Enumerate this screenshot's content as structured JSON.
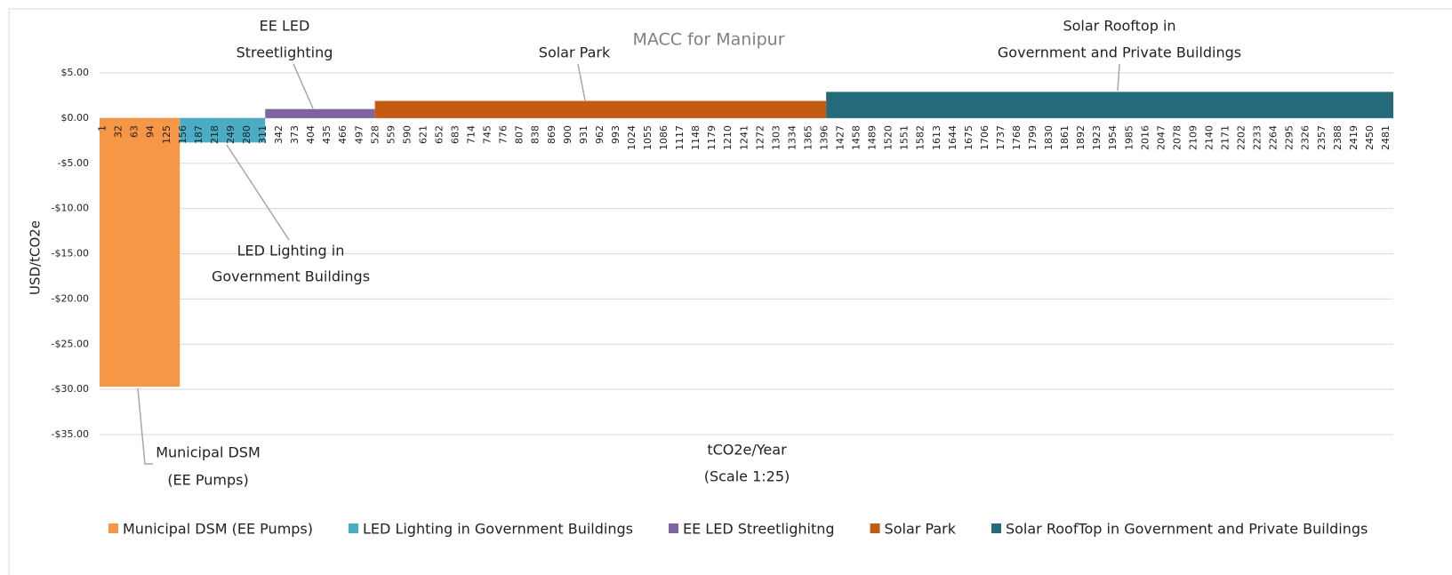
{
  "chart_data": {
    "type": "macc",
    "title": "MACC for Manipur",
    "y_label": "USD/tCO2e",
    "x_label": [
      "tCO2e/Year",
      "(Scale 1:25)"
    ],
    "xlim": [
      0,
      2500
    ],
    "xticks": [
      1,
      32,
      63,
      94,
      125,
      156,
      187,
      218,
      249,
      280,
      311,
      342,
      373,
      404,
      435,
      466,
      497,
      528,
      559,
      590,
      621,
      652,
      683,
      714,
      745,
      776,
      807,
      838,
      869,
      900,
      931,
      962,
      993,
      1024,
      1055,
      1086,
      1117,
      1148,
      1179,
      1210,
      1241,
      1272,
      1303,
      1334,
      1365,
      1396,
      1427,
      1458,
      1489,
      1520,
      1551,
      1582,
      1613,
      1644,
      1675,
      1706,
      1737,
      1768,
      1799,
      1830,
      1861,
      1892,
      1923,
      1954,
      1985,
      2016,
      2047,
      2078,
      2109,
      2140,
      2171,
      2202,
      2233,
      2264,
      2295,
      2326,
      2357,
      2388,
      2419,
      2450,
      2481
    ],
    "ylim": [
      -35,
      10
    ],
    "yticks": [
      {
        "value": 5,
        "label": "$5.00"
      },
      {
        "value": 0,
        "label": "$0.00"
      },
      {
        "value": -5,
        "label": "-$5.00"
      },
      {
        "value": -10,
        "label": "-$10.00"
      },
      {
        "value": -15,
        "label": "-$15.00"
      },
      {
        "value": -20,
        "label": "-$20.00"
      },
      {
        "value": -25,
        "label": "-$25.00"
      },
      {
        "value": -30,
        "label": "-$30.00"
      },
      {
        "value": -35,
        "label": "-$35.00"
      }
    ],
    "grid": true,
    "legend": "bottom",
    "series": [
      {
        "name": "Municipal DSM (EE Pumps)",
        "color": "#f79646",
        "values": [
          -29.7
        ],
        "widths": [
          155
        ]
      },
      {
        "name": "LED Lighting in Government Buildings",
        "color": "#4bacc6",
        "values": [
          -2.7
        ],
        "widths": [
          165
        ]
      },
      {
        "name": "EE LED Streetlighitng",
        "color": "#8064a2",
        "values": [
          1.0
        ],
        "widths": [
          212
        ]
      },
      {
        "name": "Solar Park",
        "color": "#c55a11",
        "values": [
          1.9
        ],
        "widths": [
          872
        ]
      },
      {
        "name": "Solar RoofTop in Government and Private Buildings",
        "color": "#236b7a",
        "values": [
          2.9
        ],
        "widths": [
          1096
        ]
      }
    ],
    "annotations": [
      {
        "lines": [
          "Municipal DSM",
          "(EE Pumps)"
        ]
      },
      {
        "lines": [
          "LED Lighting in",
          "Government  Buildings"
        ]
      },
      {
        "lines": [
          "EE LED",
          "Streetlighting"
        ]
      },
      {
        "lines": [
          "Solar Park"
        ]
      },
      {
        "lines": [
          "Solar Rooftop in",
          "Government  and Private Buildings"
        ]
      }
    ]
  }
}
